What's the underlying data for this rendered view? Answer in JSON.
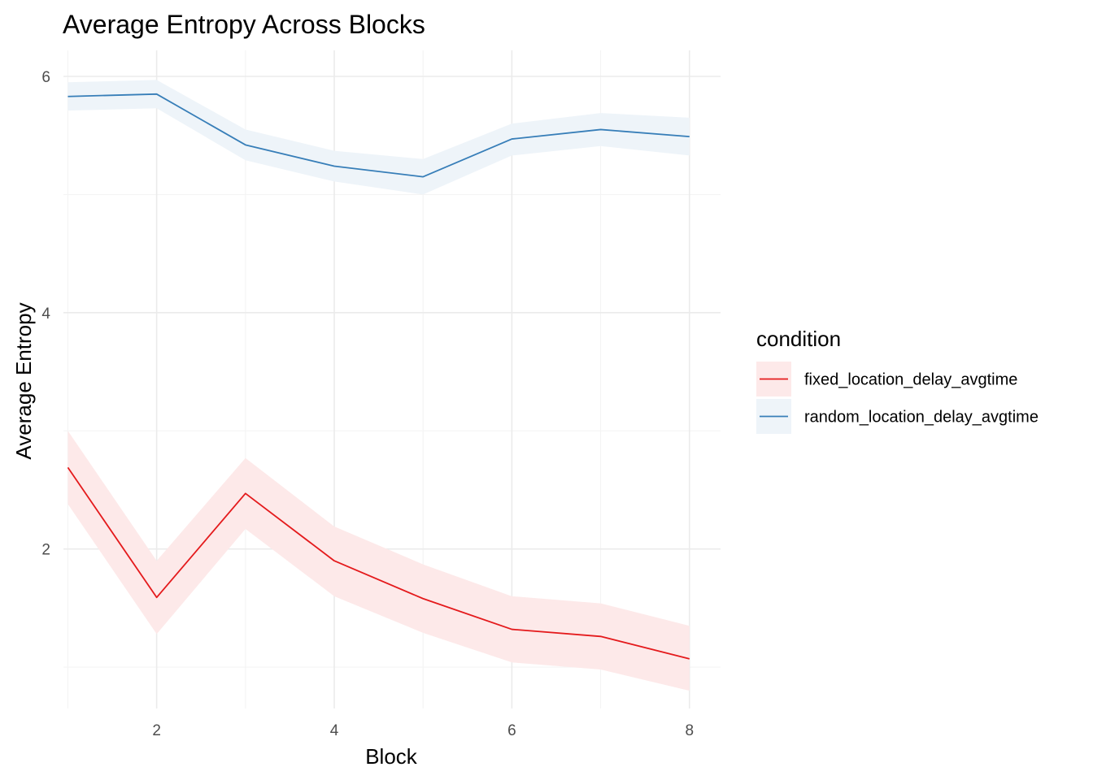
{
  "chart_data": {
    "type": "line",
    "title": "Average Entropy Across Blocks",
    "xlabel": "Block",
    "ylabel": "Average Entropy",
    "x": [
      1,
      2,
      3,
      4,
      5,
      6,
      7,
      8
    ],
    "xlim": [
      0.95,
      8.35
    ],
    "ylim": [
      0.65,
      6.22
    ],
    "x_ticks": [
      2,
      4,
      6,
      8
    ],
    "y_ticks": [
      2,
      4,
      6
    ],
    "grid": true,
    "legend": {
      "title": "condition",
      "placement": "right"
    },
    "series": [
      {
        "name": "fixed_location_delay_avgtime",
        "color": "#e41a1c",
        "ribbon_color": "#fde9e9",
        "values": [
          2.69,
          1.59,
          2.47,
          1.9,
          1.58,
          1.32,
          1.26,
          1.07
        ],
        "lower": [
          2.38,
          1.28,
          2.17,
          1.6,
          1.29,
          1.04,
          0.98,
          0.8
        ],
        "upper": [
          3.0,
          1.9,
          2.77,
          2.19,
          1.87,
          1.6,
          1.54,
          1.35
        ]
      },
      {
        "name": "random_location_delay_avgtime",
        "color": "#377eb8",
        "ribbon_color": "#eef4f9",
        "values": [
          5.83,
          5.85,
          5.42,
          5.24,
          5.15,
          5.47,
          5.55,
          5.49
        ],
        "lower": [
          5.71,
          5.73,
          5.29,
          5.11,
          5.0,
          5.33,
          5.41,
          5.33
        ],
        "upper": [
          5.95,
          5.97,
          5.55,
          5.37,
          5.3,
          5.6,
          5.69,
          5.65
        ]
      }
    ]
  }
}
